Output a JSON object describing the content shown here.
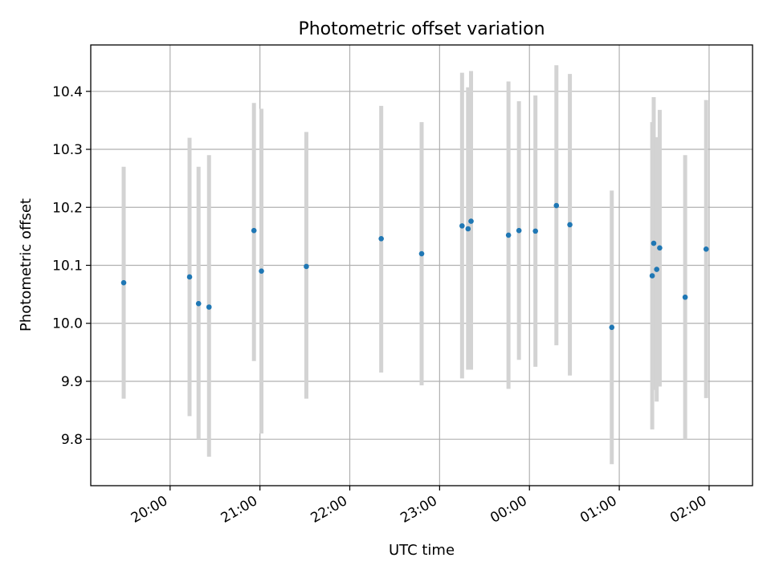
{
  "chart_data": {
    "type": "scatter",
    "title": "Photometric offset variation",
    "xlabel": "UTC time",
    "ylabel": "Photometric offset",
    "x_axis_type": "time",
    "x_range": [
      "19:07",
      "02:29"
    ],
    "ylim": [
      9.72,
      10.48
    ],
    "x_ticks": [
      "20:00",
      "21:00",
      "22:00",
      "23:00",
      "00:00",
      "01:00",
      "02:00"
    ],
    "x_tick_values": [
      "20:00",
      "21:00",
      "22:00",
      "23:00",
      "00:00",
      "01:00",
      "02:00"
    ],
    "y_ticks": [
      "9.8",
      "9.9",
      "10.0",
      "10.1",
      "10.2",
      "10.3",
      "10.4"
    ],
    "y_tick_values": [
      9.8,
      9.9,
      10.0,
      10.1,
      10.2,
      10.3,
      10.4
    ],
    "grid": true,
    "error_bars": true,
    "colors": {
      "marker": "#1f77b4",
      "error_bar": "#d3d3d3",
      "grid": "#b0b0b0"
    },
    "points": [
      {
        "x": "19:29",
        "y": 10.07,
        "ylow": 9.87,
        "yhigh": 10.27
      },
      {
        "x": "20:13",
        "y": 10.08,
        "ylow": 9.84,
        "yhigh": 10.32
      },
      {
        "x": "20:19",
        "y": 10.034,
        "ylow": 9.8,
        "yhigh": 10.27
      },
      {
        "x": "20:26",
        "y": 10.028,
        "ylow": 9.77,
        "yhigh": 10.29
      },
      {
        "x": "20:56",
        "y": 10.16,
        "ylow": 9.935,
        "yhigh": 10.38
      },
      {
        "x": "21:01",
        "y": 10.09,
        "ylow": 9.81,
        "yhigh": 10.37
      },
      {
        "x": "21:31",
        "y": 10.098,
        "ylow": 9.87,
        "yhigh": 10.33
      },
      {
        "x": "22:21",
        "y": 10.146,
        "ylow": 9.915,
        "yhigh": 10.375
      },
      {
        "x": "22:48",
        "y": 10.12,
        "ylow": 9.893,
        "yhigh": 10.347
      },
      {
        "x": "23:15",
        "y": 10.168,
        "ylow": 9.905,
        "yhigh": 10.432
      },
      {
        "x": "23:19",
        "y": 10.163,
        "ylow": 9.92,
        "yhigh": 10.407
      },
      {
        "x": "23:21",
        "y": 10.176,
        "ylow": 9.92,
        "yhigh": 10.435
      },
      {
        "x": "23:46",
        "y": 10.152,
        "ylow": 9.887,
        "yhigh": 10.417
      },
      {
        "x": "23:53",
        "y": 10.16,
        "ylow": 9.937,
        "yhigh": 10.383
      },
      {
        "x": "00:04",
        "y": 10.159,
        "ylow": 9.925,
        "yhigh": 10.393
      },
      {
        "x": "00:18",
        "y": 10.203,
        "ylow": 9.962,
        "yhigh": 10.445
      },
      {
        "x": "00:27",
        "y": 10.17,
        "ylow": 9.91,
        "yhigh": 10.43
      },
      {
        "x": "00:55",
        "y": 9.993,
        "ylow": 9.757,
        "yhigh": 10.229
      },
      {
        "x": "01:22",
        "y": 10.082,
        "ylow": 9.817,
        "yhigh": 10.347
      },
      {
        "x": "01:23",
        "y": 10.138,
        "ylow": 9.885,
        "yhigh": 10.39
      },
      {
        "x": "01:25",
        "y": 10.093,
        "ylow": 9.865,
        "yhigh": 10.321
      },
      {
        "x": "01:27",
        "y": 10.13,
        "ylow": 9.891,
        "yhigh": 10.368
      },
      {
        "x": "01:44",
        "y": 10.045,
        "ylow": 9.8,
        "yhigh": 10.29
      },
      {
        "x": "01:58",
        "y": 10.128,
        "ylow": 9.871,
        "yhigh": 10.385
      }
    ]
  }
}
